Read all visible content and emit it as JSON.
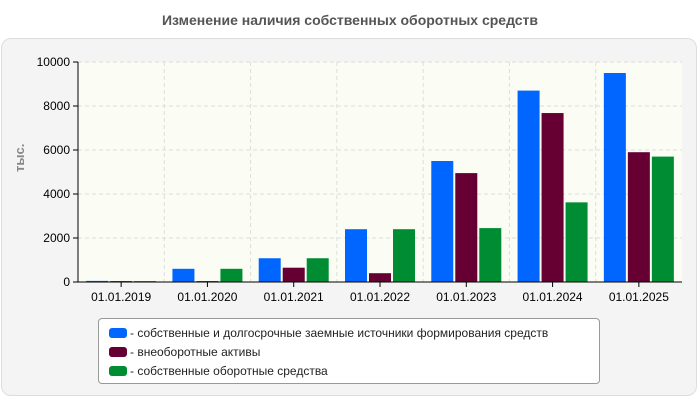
{
  "chart_data": {
    "type": "bar",
    "title": "Изменение наличия собственных оборотных средств",
    "ylabel": "тыс.",
    "xlabel": "",
    "ylim": [
      0,
      10000
    ],
    "yticks": [
      0,
      2000,
      4000,
      6000,
      8000,
      10000
    ],
    "grid": true,
    "legend_position": "bottom",
    "categories": [
      "01.01.2019",
      "01.01.2020",
      "01.01.2021",
      "01.01.2022",
      "01.01.2023",
      "01.01.2024",
      "01.01.2025"
    ],
    "series": [
      {
        "name": "- собственные и долгосрочные заемные источники формирования средств",
        "color": "#0066ff",
        "values": [
          50,
          600,
          1080,
          2400,
          5500,
          8700,
          9500
        ]
      },
      {
        "name": "- внеоборотные активы",
        "color": "#660033",
        "values": [
          40,
          40,
          650,
          400,
          4950,
          7680,
          5900
        ]
      },
      {
        "name": "- собственные оборотные средства",
        "color": "#008c33",
        "values": [
          40,
          600,
          1080,
          2400,
          2450,
          3620,
          5700
        ]
      }
    ]
  }
}
